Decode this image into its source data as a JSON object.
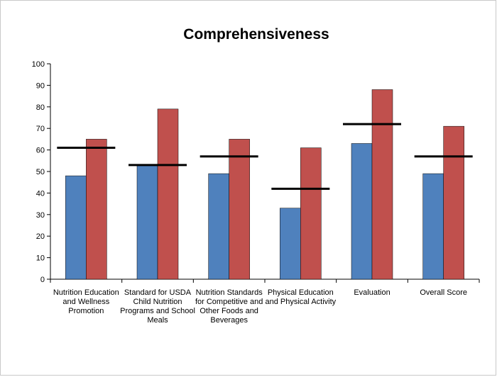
{
  "chart_data": {
    "type": "bar",
    "title": "Comprehensiveness",
    "xlabel": "",
    "ylabel": "",
    "ylim": [
      0,
      100
    ],
    "yticks": [
      0,
      10,
      20,
      30,
      40,
      50,
      60,
      70,
      80,
      90,
      100
    ],
    "grid": false,
    "legend": "none",
    "categories": [
      [
        "Nutrition Education",
        "and Wellness",
        "Promotion"
      ],
      [
        "Standard for USDA",
        "Child Nutrition",
        "Programs and School",
        "Meals"
      ],
      [
        "Nutrition Standards",
        "for Competitive and",
        "Other Foods and",
        "Beverages"
      ],
      [
        "Physical Education",
        "and Physical Activity"
      ],
      [
        "Evaluation"
      ],
      [
        "Overall Score"
      ]
    ],
    "series": [
      {
        "values": [
          48,
          53,
          49,
          33,
          63,
          49
        ],
        "color": "#4f81bd"
      },
      {
        "values": [
          65,
          79,
          65,
          61,
          88,
          71
        ],
        "color": "#c0504d"
      }
    ],
    "reference_lines": {
      "values": [
        61,
        53,
        57,
        42,
        72,
        57
      ],
      "color": "#000000"
    }
  }
}
